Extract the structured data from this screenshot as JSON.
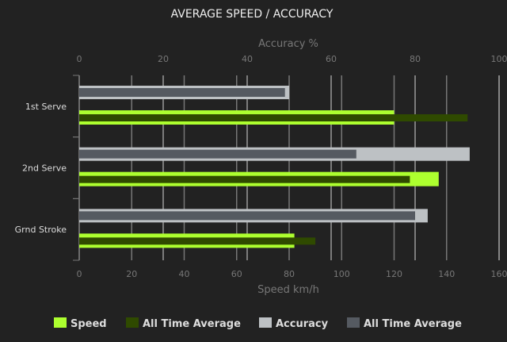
{
  "chart_data": {
    "type": "bar",
    "orientation": "horizontal",
    "title": "AVERAGE SPEED / ACCURACY",
    "categories": [
      "1st Serve",
      "2nd Serve",
      "Grnd Stroke"
    ],
    "x_bottom": {
      "label": "Speed km/h",
      "range": [
        0,
        160
      ],
      "ticks": [
        0,
        20,
        40,
        60,
        80,
        100,
        120,
        140,
        160
      ]
    },
    "x_top": {
      "label": "Accuracy %",
      "range": [
        0,
        100
      ],
      "ticks": [
        0,
        20,
        40,
        60,
        80,
        100
      ]
    },
    "grid": true,
    "legend_placement": "bottom",
    "series": [
      {
        "name": "Speed",
        "axis": "speed",
        "color": "#adff2f",
        "values": [
          120,
          137,
          82
        ]
      },
      {
        "name": "All Time Average",
        "axis": "speed",
        "color": "#2f4a00",
        "values": [
          148,
          126,
          90
        ]
      },
      {
        "name": "Accuracy",
        "axis": "accuracy",
        "color": "#bdc1c4",
        "values": [
          50,
          93,
          83
        ]
      },
      {
        "name": "All Time Average",
        "axis": "accuracy",
        "color": "#555a61",
        "values": [
          49,
          66,
          80
        ]
      }
    ]
  }
}
